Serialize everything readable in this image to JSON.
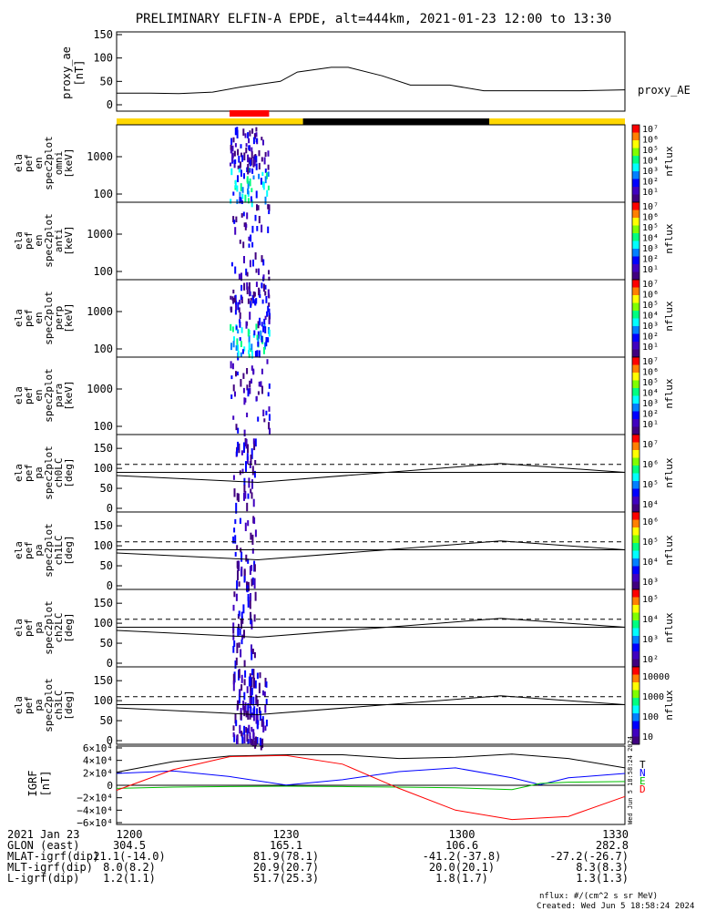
{
  "title": "PRELIMINARY ELFIN-A EPDE, alt=444km, 2021-01-23 12:00 to 13:30",
  "proxy_ae": {
    "ylabel": [
      "proxy_ae",
      "[nT]"
    ],
    "ticks": [
      "150",
      "100",
      "50",
      "0"
    ],
    "legend": "proxy_AE"
  },
  "spectrograms": [
    {
      "ylabel": [
        "ela",
        "pef",
        "en",
        "spec2plot",
        "omni",
        "[keV]"
      ],
      "ticks": [
        "1000",
        "100"
      ]
    },
    {
      "ylabel": [
        "ela",
        "pef",
        "en",
        "spec2plot",
        "anti",
        "[keV]"
      ],
      "ticks": [
        "1000",
        "100"
      ]
    },
    {
      "ylabel": [
        "ela",
        "pef",
        "en",
        "spec2plot",
        "perp",
        "[keV]"
      ],
      "ticks": [
        "1000",
        "100"
      ]
    },
    {
      "ylabel": [
        "ela",
        "pef",
        "en",
        "spec2plot",
        "para",
        "[keV]"
      ],
      "ticks": [
        "1000",
        "100"
      ]
    }
  ],
  "pitch_panels": [
    {
      "ylabel": [
        "ela",
        "pef",
        "pa",
        "spec2plot",
        "ch0LC",
        "[deg]"
      ],
      "ticks": [
        "150",
        "100",
        "50",
        "0"
      ]
    },
    {
      "ylabel": [
        "ela",
        "pef",
        "pa",
        "spec2plot",
        "ch1LC",
        "[deg]"
      ],
      "ticks": [
        "150",
        "100",
        "50",
        "0"
      ]
    },
    {
      "ylabel": [
        "ela",
        "pef",
        "pa",
        "spec2plot",
        "ch2LC",
        "[deg]"
      ],
      "ticks": [
        "150",
        "100",
        "50",
        "0"
      ]
    },
    {
      "ylabel": [
        "ela",
        "pef",
        "pa",
        "spec2plot",
        "ch3LC",
        "[deg]"
      ],
      "ticks": [
        "150",
        "100",
        "50",
        "0"
      ]
    }
  ],
  "igrf": {
    "ylabel": [
      "IGRF",
      "[nT]"
    ],
    "ticks": [
      "6×10⁴",
      "4×10⁴",
      "2×10⁴",
      "0",
      "−2×10⁴",
      "−4×10⁴",
      "−6×10⁴"
    ],
    "legend": [
      {
        "label": "T",
        "color": "#000000"
      },
      {
        "label": "N",
        "color": "#0000ff"
      },
      {
        "label": "E",
        "color": "#00c000"
      },
      {
        "label": "D",
        "color": "#ff0000"
      }
    ]
  },
  "colorbars": {
    "unit": "nflux",
    "spec_ticks": [
      "10⁷",
      "10⁶",
      "10⁵",
      "10⁴",
      "10³",
      "10²",
      "10¹"
    ],
    "pa_ticks": [
      [
        "10⁷",
        "10⁶",
        "10⁵",
        "10⁴"
      ],
      [
        "10⁶",
        "10⁵",
        "10⁴",
        "10³"
      ],
      [
        "10⁵",
        "10⁴",
        "10³",
        "10²"
      ],
      [
        "10000",
        "1000",
        "100",
        "10"
      ]
    ]
  },
  "footer_rows": [
    {
      "label": "2021 Jan 23",
      "values": [
        "1200",
        "1230",
        "1300",
        "1330"
      ]
    },
    {
      "label": "GLON (east)",
      "values": [
        "304.5",
        "165.1",
        "106.6",
        "282.8"
      ]
    },
    {
      "label": "MLAT-igrf(dip)",
      "values": [
        "21.1(-14.0)",
        "81.9(78.1)",
        "-41.2(-37.8)",
        "-27.2(-26.7)"
      ]
    },
    {
      "label": "MLT-igrf(dip)",
      "values": [
        "8.0(8.2)",
        "20.9(20.7)",
        "20.0(20.1)",
        "8.3(8.3)"
      ]
    },
    {
      "label": "L-igrf(dip)",
      "values": [
        "1.2(1.1)",
        "51.7(25.3)",
        "1.8(1.7)",
        "1.3(1.3)"
      ]
    }
  ],
  "footnote": "nflux: #/(cm^2 s sr MeV)",
  "created": "Created: Wed Jun  5 18:58:24 2024",
  "side_stamp": "Wed Jun  5 18:58:24 2024",
  "colors": {
    "sunlit": "#ffd700",
    "eclipse": "#000000",
    "science": "#ff0000",
    "ae_line": "#000000"
  },
  "chart_data": {
    "type": "line",
    "time_range": [
      "2021-01-23 12:00",
      "2021-01-23 13:30"
    ],
    "x_tick_labels": [
      "1200",
      "1230",
      "1300",
      "1330"
    ],
    "proxy_AE": {
      "x": [
        "12:00",
        "12:06",
        "12:11",
        "12:17",
        "12:22",
        "12:26",
        "12:29",
        "12:32",
        "12:38",
        "12:41",
        "12:47",
        "12:52",
        "12:59",
        "13:05",
        "13:22",
        "13:30"
      ],
      "y": [
        25,
        25,
        24,
        27,
        38,
        45,
        50,
        70,
        80,
        80,
        62,
        42,
        42,
        30,
        30,
        32
      ],
      "ylim": [
        0,
        150
      ]
    },
    "orbit_bar": {
      "segments": [
        {
          "state": "sunlit",
          "start": "12:00",
          "end": "12:33"
        },
        {
          "state": "eclipse",
          "start": "12:33",
          "end": "13:06"
        },
        {
          "state": "sunlit",
          "start": "13:06",
          "end": "13:30"
        }
      ],
      "science_zone": {
        "start": "12:20",
        "end": "12:27"
      }
    },
    "pitch_angle_lines": {
      "x": [
        "12:00",
        "12:25",
        "13:08",
        "13:30"
      ],
      "solid": [
        82,
        65,
        112,
        90
      ],
      "dashed": 110,
      "ylim": [
        0,
        180
      ]
    },
    "igrf": {
      "ylim": [
        -60000,
        60000
      ],
      "series": [
        {
          "name": "T",
          "x": [
            "12:00",
            "12:10",
            "12:20",
            "12:30",
            "12:40",
            "12:50",
            "13:00",
            "13:10",
            "13:20",
            "13:30"
          ],
          "y": [
            21000,
            38000,
            47000,
            49000,
            49000,
            43000,
            45000,
            50000,
            43000,
            28000
          ]
        },
        {
          "name": "N",
          "x": [
            "12:00",
            "12:10",
            "12:20",
            "12:30",
            "12:40",
            "12:50",
            "13:00",
            "13:10",
            "13:15",
            "13:20",
            "13:30"
          ],
          "y": [
            19000,
            23000,
            14000,
            500,
            9000,
            22000,
            28000,
            12000,
            1000,
            12000,
            19000
          ]
        },
        {
          "name": "E",
          "x": [
            "12:00",
            "12:10",
            "12:20",
            "12:30",
            "12:40",
            "12:50",
            "13:00",
            "13:10",
            "13:15",
            "13:20",
            "13:30"
          ],
          "y": [
            -5000,
            -3000,
            -2000,
            -1500,
            -2000,
            -3000,
            -4000,
            -7000,
            3000,
            5000,
            6000
          ]
        },
        {
          "name": "D",
          "x": [
            "12:00",
            "12:10",
            "12:20",
            "12:30",
            "12:40",
            "12:50",
            "13:00",
            "13:10",
            "13:20",
            "13:30"
          ],
          "y": [
            -8000,
            25000,
            46000,
            48000,
            34000,
            -5000,
            -40000,
            -55000,
            -50000,
            -18000
          ]
        }
      ]
    }
  }
}
